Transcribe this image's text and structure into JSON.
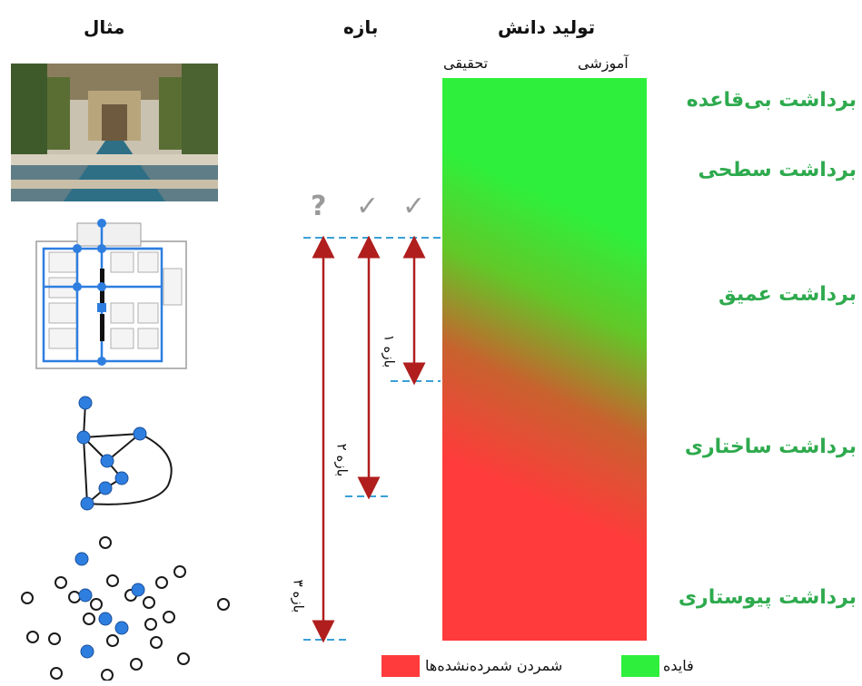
{
  "headers": {
    "example": "مثال",
    "range": "بازه",
    "knowledge": "تولید دانش",
    "research": "تحقیقی",
    "educational": "آموزشی"
  },
  "levels": [
    "برداشت بی‌قاعده",
    "برداشت سطحی",
    "برداشت عمیق",
    "برداشت ساختاری",
    "برداشت پیوستاری"
  ],
  "marks": [
    "?",
    "✓",
    "✓"
  ],
  "ranges": [
    "بازه ۱",
    "بازه ۲",
    "بازه ۳"
  ],
  "legend": {
    "cost": "شمردن شمرده‌نشده‌ها",
    "benefit": "فایده"
  },
  "colors": {
    "green": "#2ef03c",
    "red": "#ff3b3b",
    "arrow": "#b01e1e",
    "dash": "#3aa0d8",
    "level_text": "#2eaa4e"
  }
}
